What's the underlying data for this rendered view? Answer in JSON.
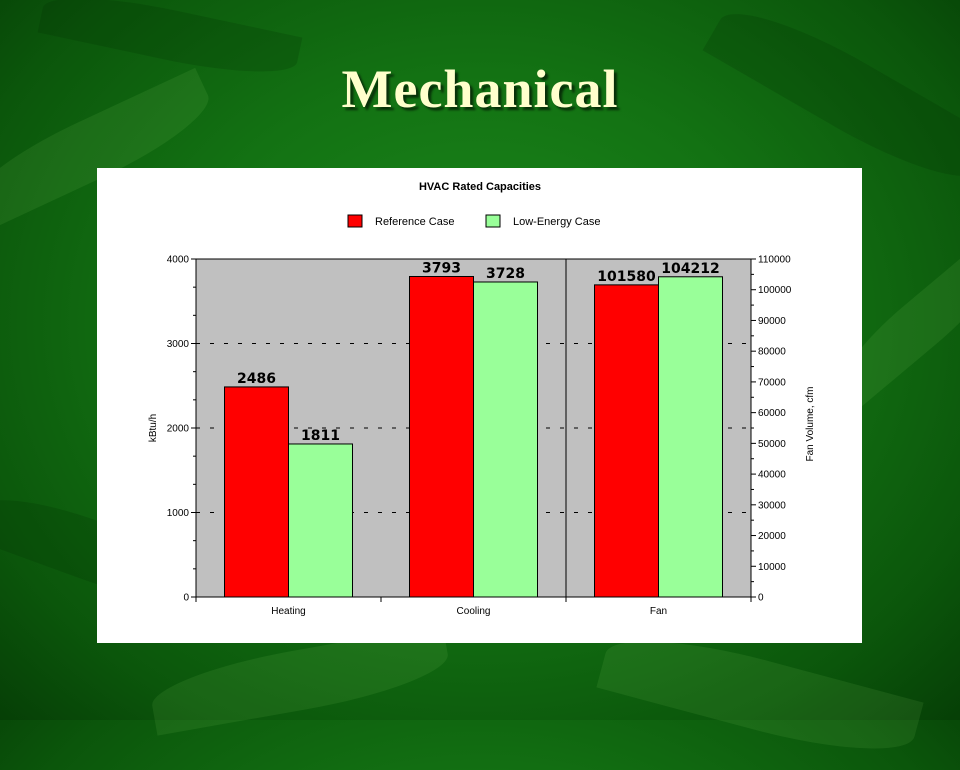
{
  "slide": {
    "title": "Mechanical"
  },
  "colors": {
    "background": "#137213",
    "title_text": "#ffffcc",
    "reference": "#ff0000",
    "low_energy": "#99ff99",
    "plot_area": "#c0c0c0"
  },
  "chart_data": {
    "type": "bar",
    "title": "HVAC Rated Capacities",
    "categories": [
      "Heating",
      "Cooling",
      "Fan"
    ],
    "series": [
      {
        "name": "Reference Case",
        "values": [
          2486,
          3793,
          101580
        ]
      },
      {
        "name": "Low-Energy Case",
        "values": [
          1811,
          3728,
          104212
        ]
      }
    ],
    "ylabel": "kBtu/h",
    "ylim": [
      0,
      4000
    ],
    "yticks": [
      0,
      1000,
      2000,
      3000,
      4000
    ],
    "y2label": "Fan Volume, cfm",
    "y2lim": [
      0,
      110000
    ],
    "y2ticks": [
      0,
      10000,
      20000,
      30000,
      40000,
      50000,
      60000,
      70000,
      80000,
      90000,
      100000,
      110000
    ],
    "secondary_axis_categories": [
      "Fan"
    ],
    "legend_position": "top",
    "grid": "dashed horizontal"
  }
}
